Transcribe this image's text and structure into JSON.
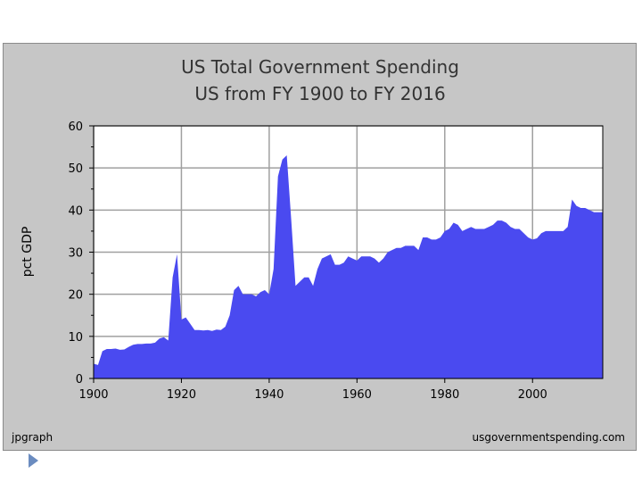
{
  "chart_data": {
    "type": "area",
    "title": "US Total Government Spending",
    "subtitle": "US from FY 1900 to FY 2016",
    "ylabel": "pct GDP",
    "xlabel": "",
    "xlim": [
      1900,
      2016
    ],
    "ylim": [
      0,
      60
    ],
    "x_ticks": [
      1900,
      1920,
      1940,
      1960,
      1980,
      2000
    ],
    "y_ticks": [
      0,
      10,
      20,
      30,
      40,
      50,
      60
    ],
    "grid": true,
    "fill_color": "#4a4af0",
    "plot_background": "#ffffff",
    "footer_left": "jpgraph",
    "footer_right": "usgovernmentspending.com",
    "series": [
      {
        "x": [
          1900,
          1901,
          1902,
          1903,
          1904,
          1905,
          1906,
          1907,
          1908,
          1909,
          1910,
          1911,
          1912,
          1913,
          1914,
          1915,
          1916,
          1917,
          1918,
          1919,
          1920,
          1921,
          1922,
          1923,
          1924,
          1925,
          1926,
          1927,
          1928,
          1929,
          1930,
          1931,
          1932,
          1933,
          1934,
          1935,
          1936,
          1937,
          1938,
          1939,
          1940,
          1941,
          1942,
          1943,
          1944,
          1945,
          1946,
          1947,
          1948,
          1949,
          1950,
          1951,
          1952,
          1953,
          1954,
          1955,
          1956,
          1957,
          1958,
          1959,
          1960,
          1961,
          1962,
          1963,
          1964,
          1965,
          1966,
          1967,
          1968,
          1969,
          1970,
          1971,
          1972,
          1973,
          1974,
          1975,
          1976,
          1977,
          1978,
          1979,
          1980,
          1981,
          1982,
          1983,
          1984,
          1985,
          1986,
          1987,
          1988,
          1989,
          1990,
          1991,
          1992,
          1993,
          1994,
          1995,
          1996,
          1997,
          1998,
          1999,
          2000,
          2001,
          2002,
          2003,
          2004,
          2005,
          2006,
          2007,
          2008,
          2009,
          2010,
          2011,
          2012,
          2013,
          2014,
          2015,
          2016
        ],
        "values": [
          3.5,
          3.2,
          6.5,
          7.0,
          7.0,
          7.1,
          6.8,
          6.9,
          7.5,
          8.0,
          8.2,
          8.2,
          8.3,
          8.3,
          8.5,
          9.5,
          9.8,
          9.0,
          24,
          29.5,
          14,
          14.5,
          13,
          11.5,
          11.5,
          11.4,
          11.5,
          11.3,
          11.6,
          11.5,
          12.3,
          15,
          21,
          22,
          20,
          20,
          20,
          19.5,
          20.5,
          21,
          20,
          26,
          48,
          52,
          53,
          38,
          22,
          23,
          24,
          24,
          22,
          26,
          28.5,
          29,
          29.5,
          27,
          27,
          27.5,
          29,
          28.5,
          28,
          29,
          29,
          29,
          28.5,
          27.5,
          28.5,
          30,
          30.5,
          31,
          31,
          31.5,
          31.5,
          31.5,
          30.5,
          33.5,
          33.5,
          33,
          33,
          33.5,
          35,
          35.5,
          37,
          36.5,
          35,
          35.5,
          36,
          35.5,
          35.5,
          35.5,
          36,
          36.5,
          37.5,
          37.5,
          37,
          36,
          35.5,
          35.5,
          34.5,
          33.5,
          33,
          33.3,
          34.5,
          35,
          35,
          35,
          35,
          35,
          36,
          42.5,
          41,
          40.5,
          40.5,
          40,
          39.5,
          39.5,
          39.5
        ]
      }
    ]
  }
}
